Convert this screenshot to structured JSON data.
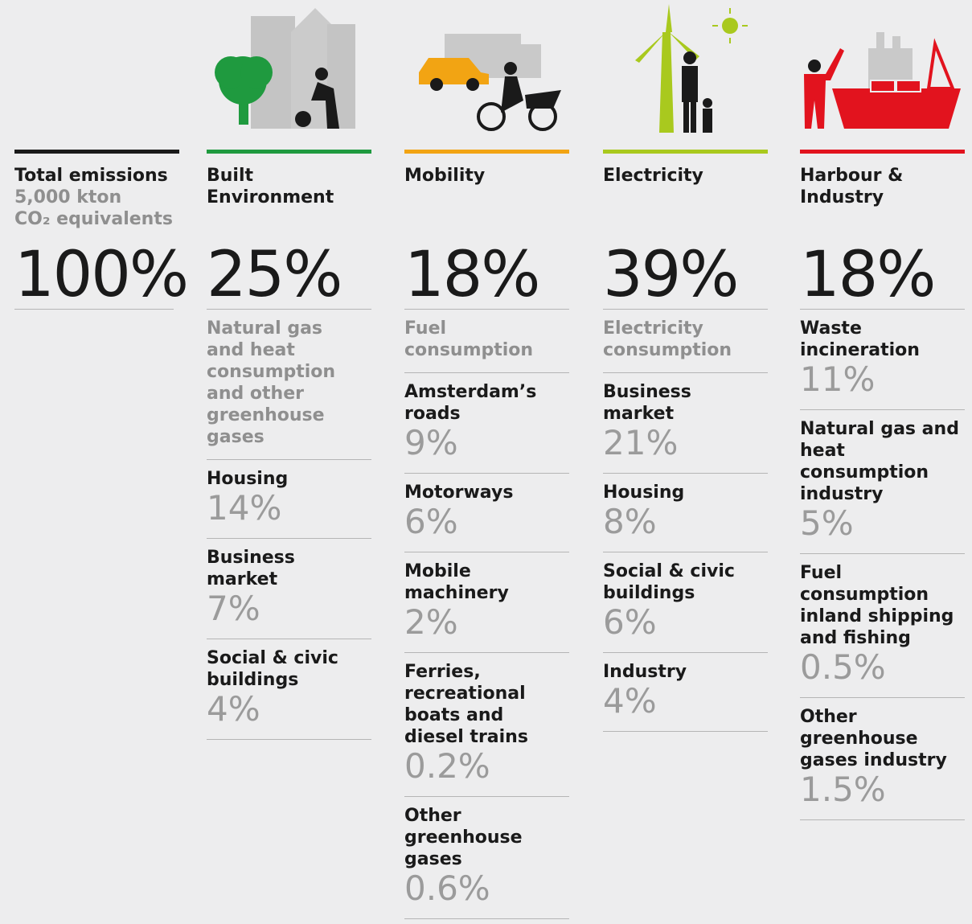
{
  "total": {
    "title": "Total emissions",
    "amount": "5,000 kton",
    "unit": "CO₂ equivalents",
    "value": "100%",
    "color": "#1a1a1a"
  },
  "sectors": [
    {
      "title": "Built Environment",
      "color": "#1f9a3f",
      "value": "25%",
      "subtitle": "Natural gas and heat consumption and other greenhouse gases",
      "items": [
        {
          "label": "Housing",
          "value": "14%"
        },
        {
          "label": "Business market",
          "value": "7%"
        },
        {
          "label": "Social & civic buildings",
          "value": "4%"
        }
      ]
    },
    {
      "title": "Mobility",
      "color": "#f2a413",
      "value": "18%",
      "subtitle": "Fuel consumption",
      "items": [
        {
          "label": "Amsterdam’s roads",
          "value": "9%"
        },
        {
          "label": "Motorways",
          "value": "6%"
        },
        {
          "label": "Mobile machinery",
          "value": "2%"
        },
        {
          "label": "Ferries, recreational boats and diesel trains",
          "value": "0.2%"
        },
        {
          "label": "Other greenhouse gases",
          "value": "0.6%"
        }
      ]
    },
    {
      "title": "Electricity",
      "color": "#a9c91e",
      "value": "39%",
      "subtitle": "Electricity consumption",
      "items": [
        {
          "label": "Business market",
          "value": "21%"
        },
        {
          "label": "Housing",
          "value": "8%"
        },
        {
          "label": "Social & civic buildings",
          "value": "6%"
        },
        {
          "label": "Industry",
          "value": "4%"
        }
      ]
    },
    {
      "title": "Harbour & Industry",
      "color": "#e2131e",
      "value": "18%",
      "subtitle": null,
      "items": [
        {
          "label": "Waste incineration",
          "value": "11%"
        },
        {
          "label": "Natural gas and heat consumption industry",
          "value": "5%"
        },
        {
          "label": "Fuel consumption inland shipping and fishing",
          "value": "0.5%"
        },
        {
          "label": "Other greenhouse gases industry",
          "value": "1.5%"
        }
      ]
    }
  ]
}
